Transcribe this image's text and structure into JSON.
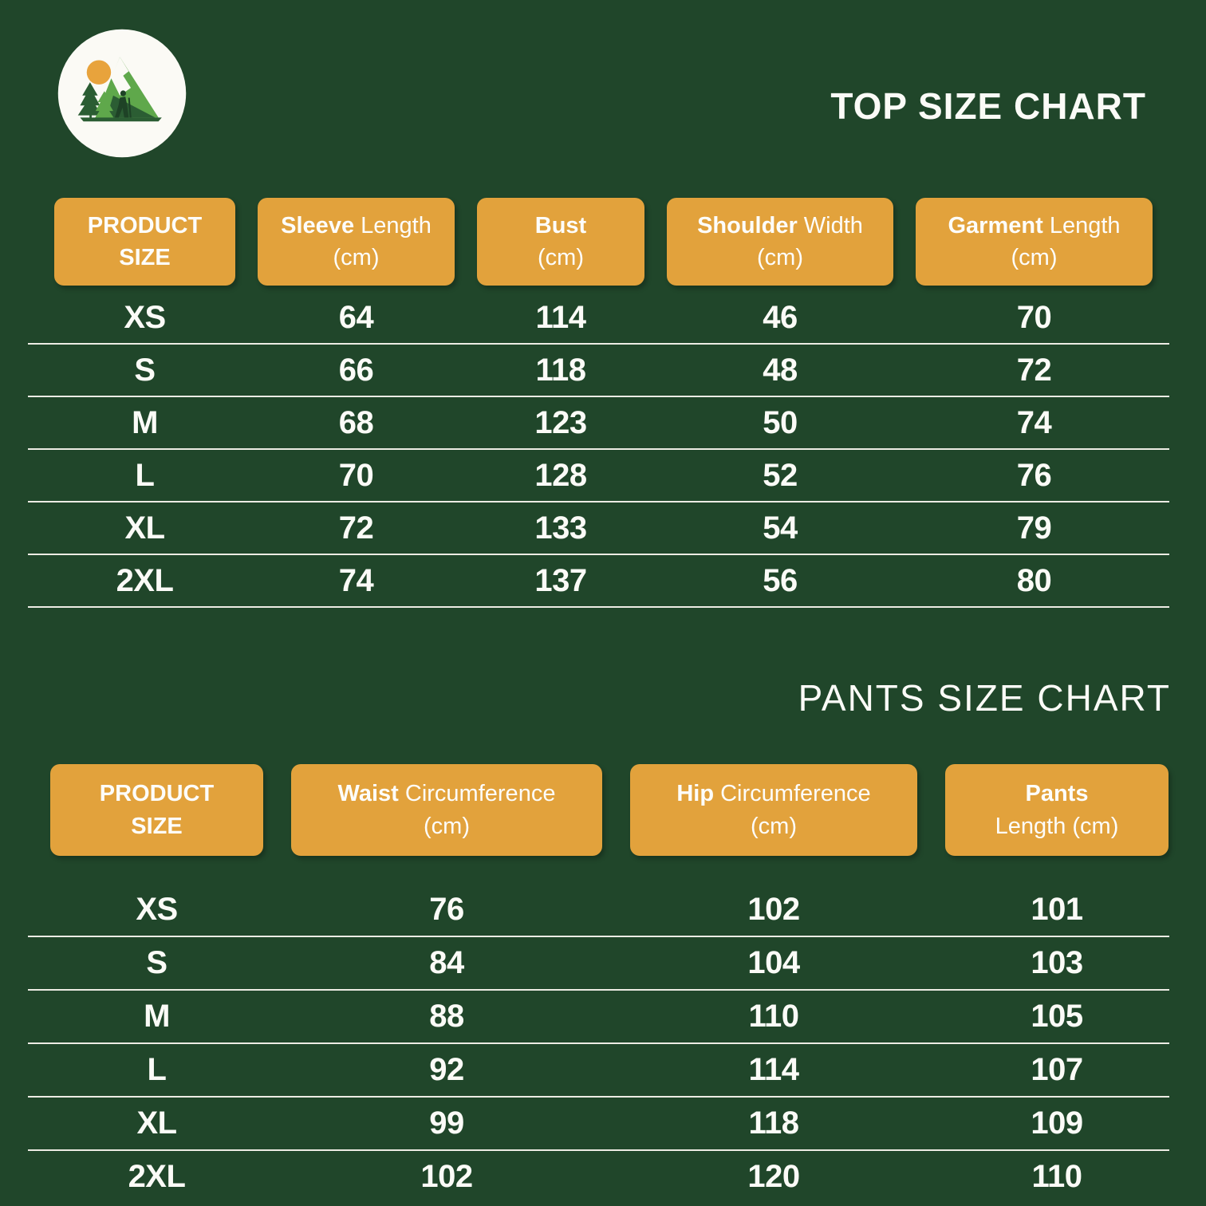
{
  "colors": {
    "background": "#20462A",
    "header_cell": "#E2A23C",
    "text": "#FBFBF7",
    "separator_line": "#EDECE4",
    "logo_circle": "#FBFAF5",
    "logo_sun": "#E8A33C",
    "logo_mountain_light": "#5FA84B",
    "logo_mountain_dark": "#2B5D33"
  },
  "logo": {
    "label": "mountain-hiker-logo"
  },
  "top_chart": {
    "title": "TOP SIZE CHART",
    "headers": [
      {
        "bold": "PRODUCT",
        "regular": "",
        "line2_bold": "SIZE",
        "line2": ""
      },
      {
        "bold": "Sleeve",
        "regular": "Length",
        "line2_bold": "",
        "line2": "(cm)"
      },
      {
        "bold": "Bust",
        "regular": "",
        "line2_bold": "",
        "line2": "(cm)"
      },
      {
        "bold": "Shoulder",
        "regular": "Width",
        "line2_bold": "",
        "line2": "(cm)"
      },
      {
        "bold": "Garment",
        "regular": "Length",
        "line2_bold": "",
        "line2": "(cm)"
      }
    ],
    "rows": [
      {
        "size": "XS",
        "values": [
          "64",
          "114",
          "46",
          "70"
        ]
      },
      {
        "size": "S",
        "values": [
          "66",
          "118",
          "48",
          "72"
        ]
      },
      {
        "size": "M",
        "values": [
          "68",
          "123",
          "50",
          "74"
        ]
      },
      {
        "size": "L",
        "values": [
          "70",
          "128",
          "52",
          "76"
        ]
      },
      {
        "size": "XL",
        "values": [
          "72",
          "133",
          "54",
          "79"
        ]
      },
      {
        "size": "2XL",
        "values": [
          "74",
          "137",
          "56",
          "80"
        ]
      }
    ]
  },
  "pants_chart": {
    "title": "PANTS SIZE CHART",
    "headers": [
      {
        "bold": "PRODUCT",
        "regular": "",
        "line2_bold": "SIZE",
        "line2": ""
      },
      {
        "bold": "Waist",
        "regular": "Circumference",
        "line2_bold": "",
        "line2": "(cm)"
      },
      {
        "bold": "Hip",
        "regular": "Circumference",
        "line2_bold": "",
        "line2": "(cm)"
      },
      {
        "bold": "Pants",
        "regular": "",
        "line2_bold": "",
        "line2": "Length (cm)"
      }
    ],
    "rows": [
      {
        "size": "XS",
        "values": [
          "76",
          "102",
          "101"
        ]
      },
      {
        "size": "S",
        "values": [
          "84",
          "104",
          "103"
        ]
      },
      {
        "size": "M",
        "values": [
          "88",
          "110",
          "105"
        ]
      },
      {
        "size": "L",
        "values": [
          "92",
          "114",
          "107"
        ]
      },
      {
        "size": "XL",
        "values": [
          "99",
          "118",
          "109"
        ]
      },
      {
        "size": "2XL",
        "values": [
          "102",
          "120",
          "110"
        ]
      }
    ]
  },
  "chart_data": [
    {
      "type": "table",
      "title": "TOP SIZE CHART",
      "columns": [
        "PRODUCT SIZE",
        "Sleeve Length (cm)",
        "Bust (cm)",
        "Shoulder Width (cm)",
        "Garment Length (cm)"
      ],
      "rows": [
        [
          "XS",
          64,
          114,
          46,
          70
        ],
        [
          "S",
          66,
          118,
          48,
          72
        ],
        [
          "M",
          68,
          123,
          50,
          74
        ],
        [
          "L",
          70,
          128,
          52,
          76
        ],
        [
          "XL",
          72,
          133,
          54,
          79
        ],
        [
          "2XL",
          74,
          137,
          56,
          80
        ]
      ]
    },
    {
      "type": "table",
      "title": "PANTS SIZE CHART",
      "columns": [
        "PRODUCT SIZE",
        "Waist Circumference (cm)",
        "Hip Circumference (cm)",
        "Pants Length (cm)"
      ],
      "rows": [
        [
          "XS",
          76,
          102,
          101
        ],
        [
          "S",
          84,
          104,
          103
        ],
        [
          "M",
          88,
          110,
          105
        ],
        [
          "L",
          92,
          114,
          107
        ],
        [
          "XL",
          99,
          118,
          109
        ],
        [
          "2XL",
          102,
          120,
          110
        ]
      ]
    }
  ]
}
